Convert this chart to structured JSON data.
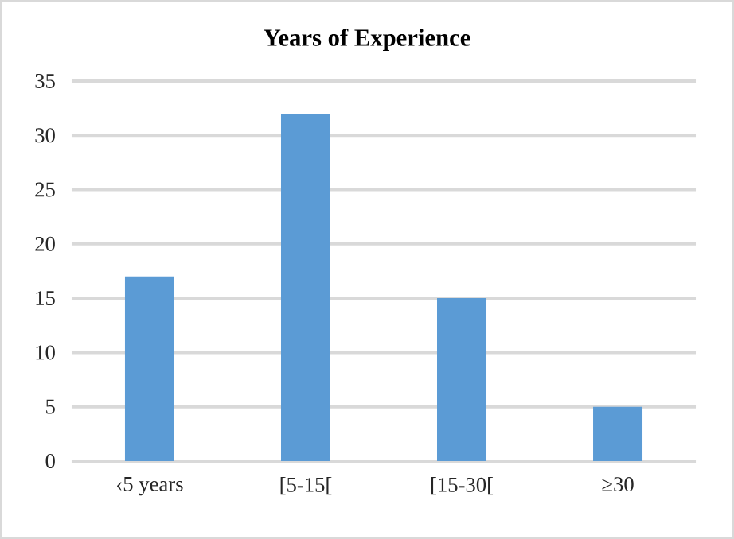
{
  "chart_data": {
    "type": "bar",
    "title": "Years of Experience",
    "categories": [
      "‹5 years",
      "[5-15[",
      "[15-30[",
      "≥30"
    ],
    "values": [
      17,
      32,
      15,
      5
    ],
    "color": "#5b9bd5",
    "ylim": [
      0,
      35
    ],
    "yticks": [
      0,
      5,
      10,
      15,
      20,
      25,
      30,
      35
    ],
    "grid": "y"
  }
}
